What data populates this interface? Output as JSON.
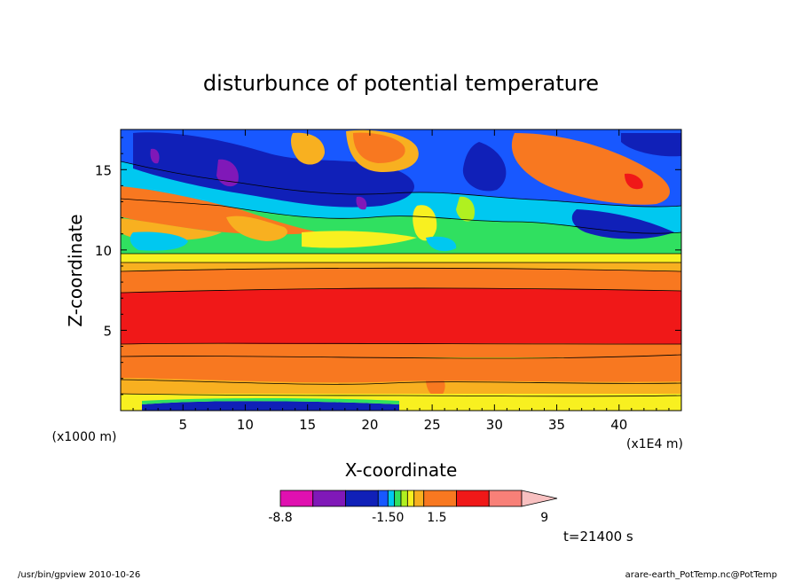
{
  "chart_data": {
    "type": "heatmap",
    "title": "disturbunce of potential temperature",
    "xlabel": "X-coordinate",
    "ylabel": "Z-coordinate",
    "x_unit_left": "(x1000 m)",
    "x_unit_right": "(x1E4 m)",
    "xlim": [
      0,
      45
    ],
    "ylim": [
      0,
      17.5
    ],
    "x_ticks": [
      5,
      10,
      15,
      20,
      25,
      30,
      35,
      40
    ],
    "x_tick_labels": [
      "5",
      "10",
      "15",
      "20",
      "25",
      "30",
      "35",
      "40"
    ],
    "y_ticks": [
      5,
      10,
      15
    ],
    "y_tick_labels": [
      "5",
      "10",
      "15"
    ],
    "colorbar": {
      "colors": [
        "#e010b0",
        "#8018b8",
        "#1020b8",
        "#1858ff",
        "#00c8f0",
        "#30e060",
        "#b0f020",
        "#f8f020",
        "#f8b020",
        "#f87820",
        "#f01818",
        "#f88078",
        "#f8c0c0"
      ],
      "widths": [
        1,
        1,
        1,
        0.3,
        0.2,
        0.2,
        0.2,
        0.2,
        0.3,
        1,
        1,
        1,
        1
      ],
      "labels": [
        {
          "text": "-8.8",
          "at": 0
        },
        {
          "text": "-1.50",
          "at": 3.3
        },
        {
          "text": "1.5",
          "at": 4.8
        },
        {
          "text": "9",
          "at": 8.1
        }
      ]
    },
    "annotation": "t=21400 s"
  },
  "footer": {
    "left": "/usr/bin/gpview  2010-10-26",
    "right": "arare-earth_PotTemp.nc@PotTemp"
  }
}
